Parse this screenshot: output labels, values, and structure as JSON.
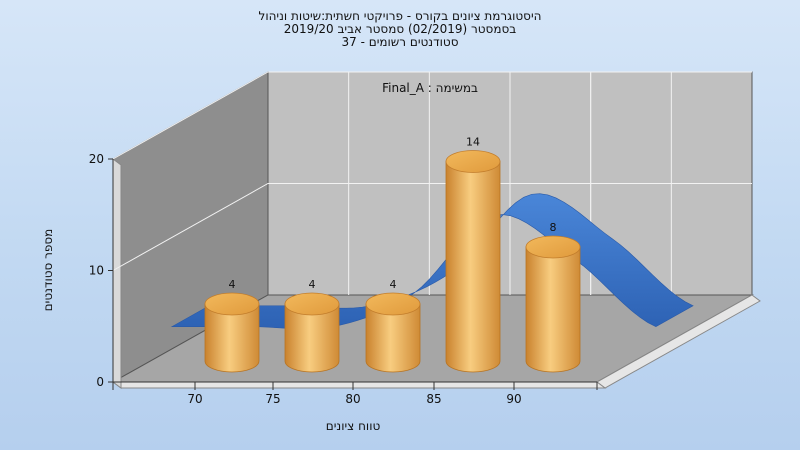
{
  "title_lines": [
    "היסטוגרמת ציונים בקורס - פרויקטי חשתית:שיטות וניהול",
    "בסמסטר  (02/2019)  סמסטר אביב 2019/20",
    "סטודנטים רשומים - 37"
  ],
  "chart_data": {
    "type": "bar",
    "title": "היסטוגרמת ציונים בקורס - פרויקטי חשתית:שיטות וניהול",
    "subtitle": "בסמסטר  (02/2019)  סמסטר אביב 2019/20 | סטודנטים רשומים - 37",
    "inner_label": "במשימה : Final_A",
    "xlabel": "טווח ציונים",
    "ylabel": "מספר סטודנטים",
    "x_ticks": [
      "70",
      "75",
      "80",
      "85",
      "90"
    ],
    "categories": [
      "70",
      "75",
      "80",
      "85",
      "90"
    ],
    "series": [
      {
        "type": "bar",
        "values": [
          4,
          4,
          4,
          14,
          8
        ],
        "color": "#e8a94a"
      },
      {
        "type": "line",
        "x": [
          65,
          70,
          75,
          80,
          85,
          90,
          95
        ],
        "values": [
          2,
          2,
          2,
          5,
          12,
          8,
          2
        ],
        "color": "#3370c2"
      }
    ],
    "ylim": [
      0,
      20
    ],
    "y_ticks": [
      0,
      10,
      20
    ],
    "grid": true,
    "legend": "none"
  }
}
